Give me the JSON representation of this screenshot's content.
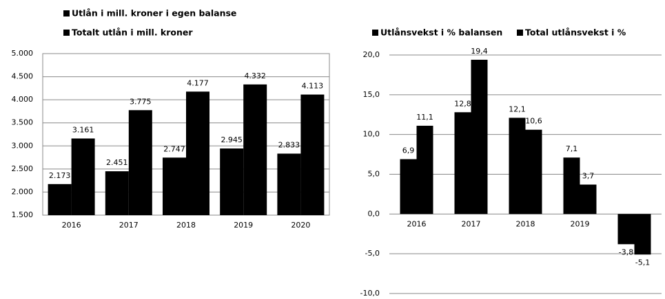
{
  "chart_data": [
    {
      "type": "bar",
      "categories": [
        "2016",
        "2017",
        "2018",
        "2019",
        "2020"
      ],
      "series": [
        {
          "name": "Utlån i mill. kroner i egen balanse",
          "color": "#000000",
          "values": [
            2173,
            2451,
            2747,
            2945,
            2833
          ],
          "value_labels": [
            "2.173",
            "2.451",
            "2.747",
            "2.945",
            "2.833"
          ]
        },
        {
          "name": "Totalt utlån i mill. kroner",
          "color": "#000000",
          "values": [
            3161,
            3775,
            4177,
            4332,
            4113
          ],
          "value_labels": [
            "3.161",
            "3.775",
            "4.177",
            "4.332",
            "4.113"
          ]
        }
      ],
      "ylim": [
        1500,
        5000
      ],
      "yticks": [
        {
          "value": 1500,
          "label": "1.500"
        },
        {
          "value": 2000,
          "label": "2.000"
        },
        {
          "value": 2500,
          "label": "2.500"
        },
        {
          "value": 3000,
          "label": "3.000"
        },
        {
          "value": 3500,
          "label": "3.500"
        },
        {
          "value": 4000,
          "label": "4.000"
        },
        {
          "value": 4500,
          "label": "4.500"
        },
        {
          "value": 5000,
          "label": "5.000"
        }
      ],
      "grid": true
    },
    {
      "type": "bar",
      "categories": [
        "2016",
        "2017",
        "2018",
        "2019",
        null
      ],
      "series": [
        {
          "name": "Utlånsvekst i % balansen",
          "color": "#000000",
          "values": [
            6.9,
            12.8,
            12.1,
            7.1,
            -3.8
          ],
          "value_labels": [
            "6,9",
            "12,8",
            "12,1",
            "7,1",
            "-3,8"
          ]
        },
        {
          "name": "Total utlånsvekst i %",
          "color": "#000000",
          "values": [
            11.1,
            19.4,
            10.6,
            3.7,
            -5.1
          ],
          "value_labels": [
            "11,1",
            "19,4",
            "10,6",
            "3,7",
            "-5,1"
          ]
        }
      ],
      "ylim": [
        -10,
        20
      ],
      "yticks": [
        {
          "value": -10,
          "label": "-10,0"
        },
        {
          "value": -5,
          "label": "-5,0"
        },
        {
          "value": 0,
          "label": "0,0"
        },
        {
          "value": 5,
          "label": "5,0"
        },
        {
          "value": 10,
          "label": "10,0"
        },
        {
          "value": 15,
          "label": "15,0"
        },
        {
          "value": 20,
          "label": "20,0"
        }
      ],
      "grid": true
    }
  ]
}
